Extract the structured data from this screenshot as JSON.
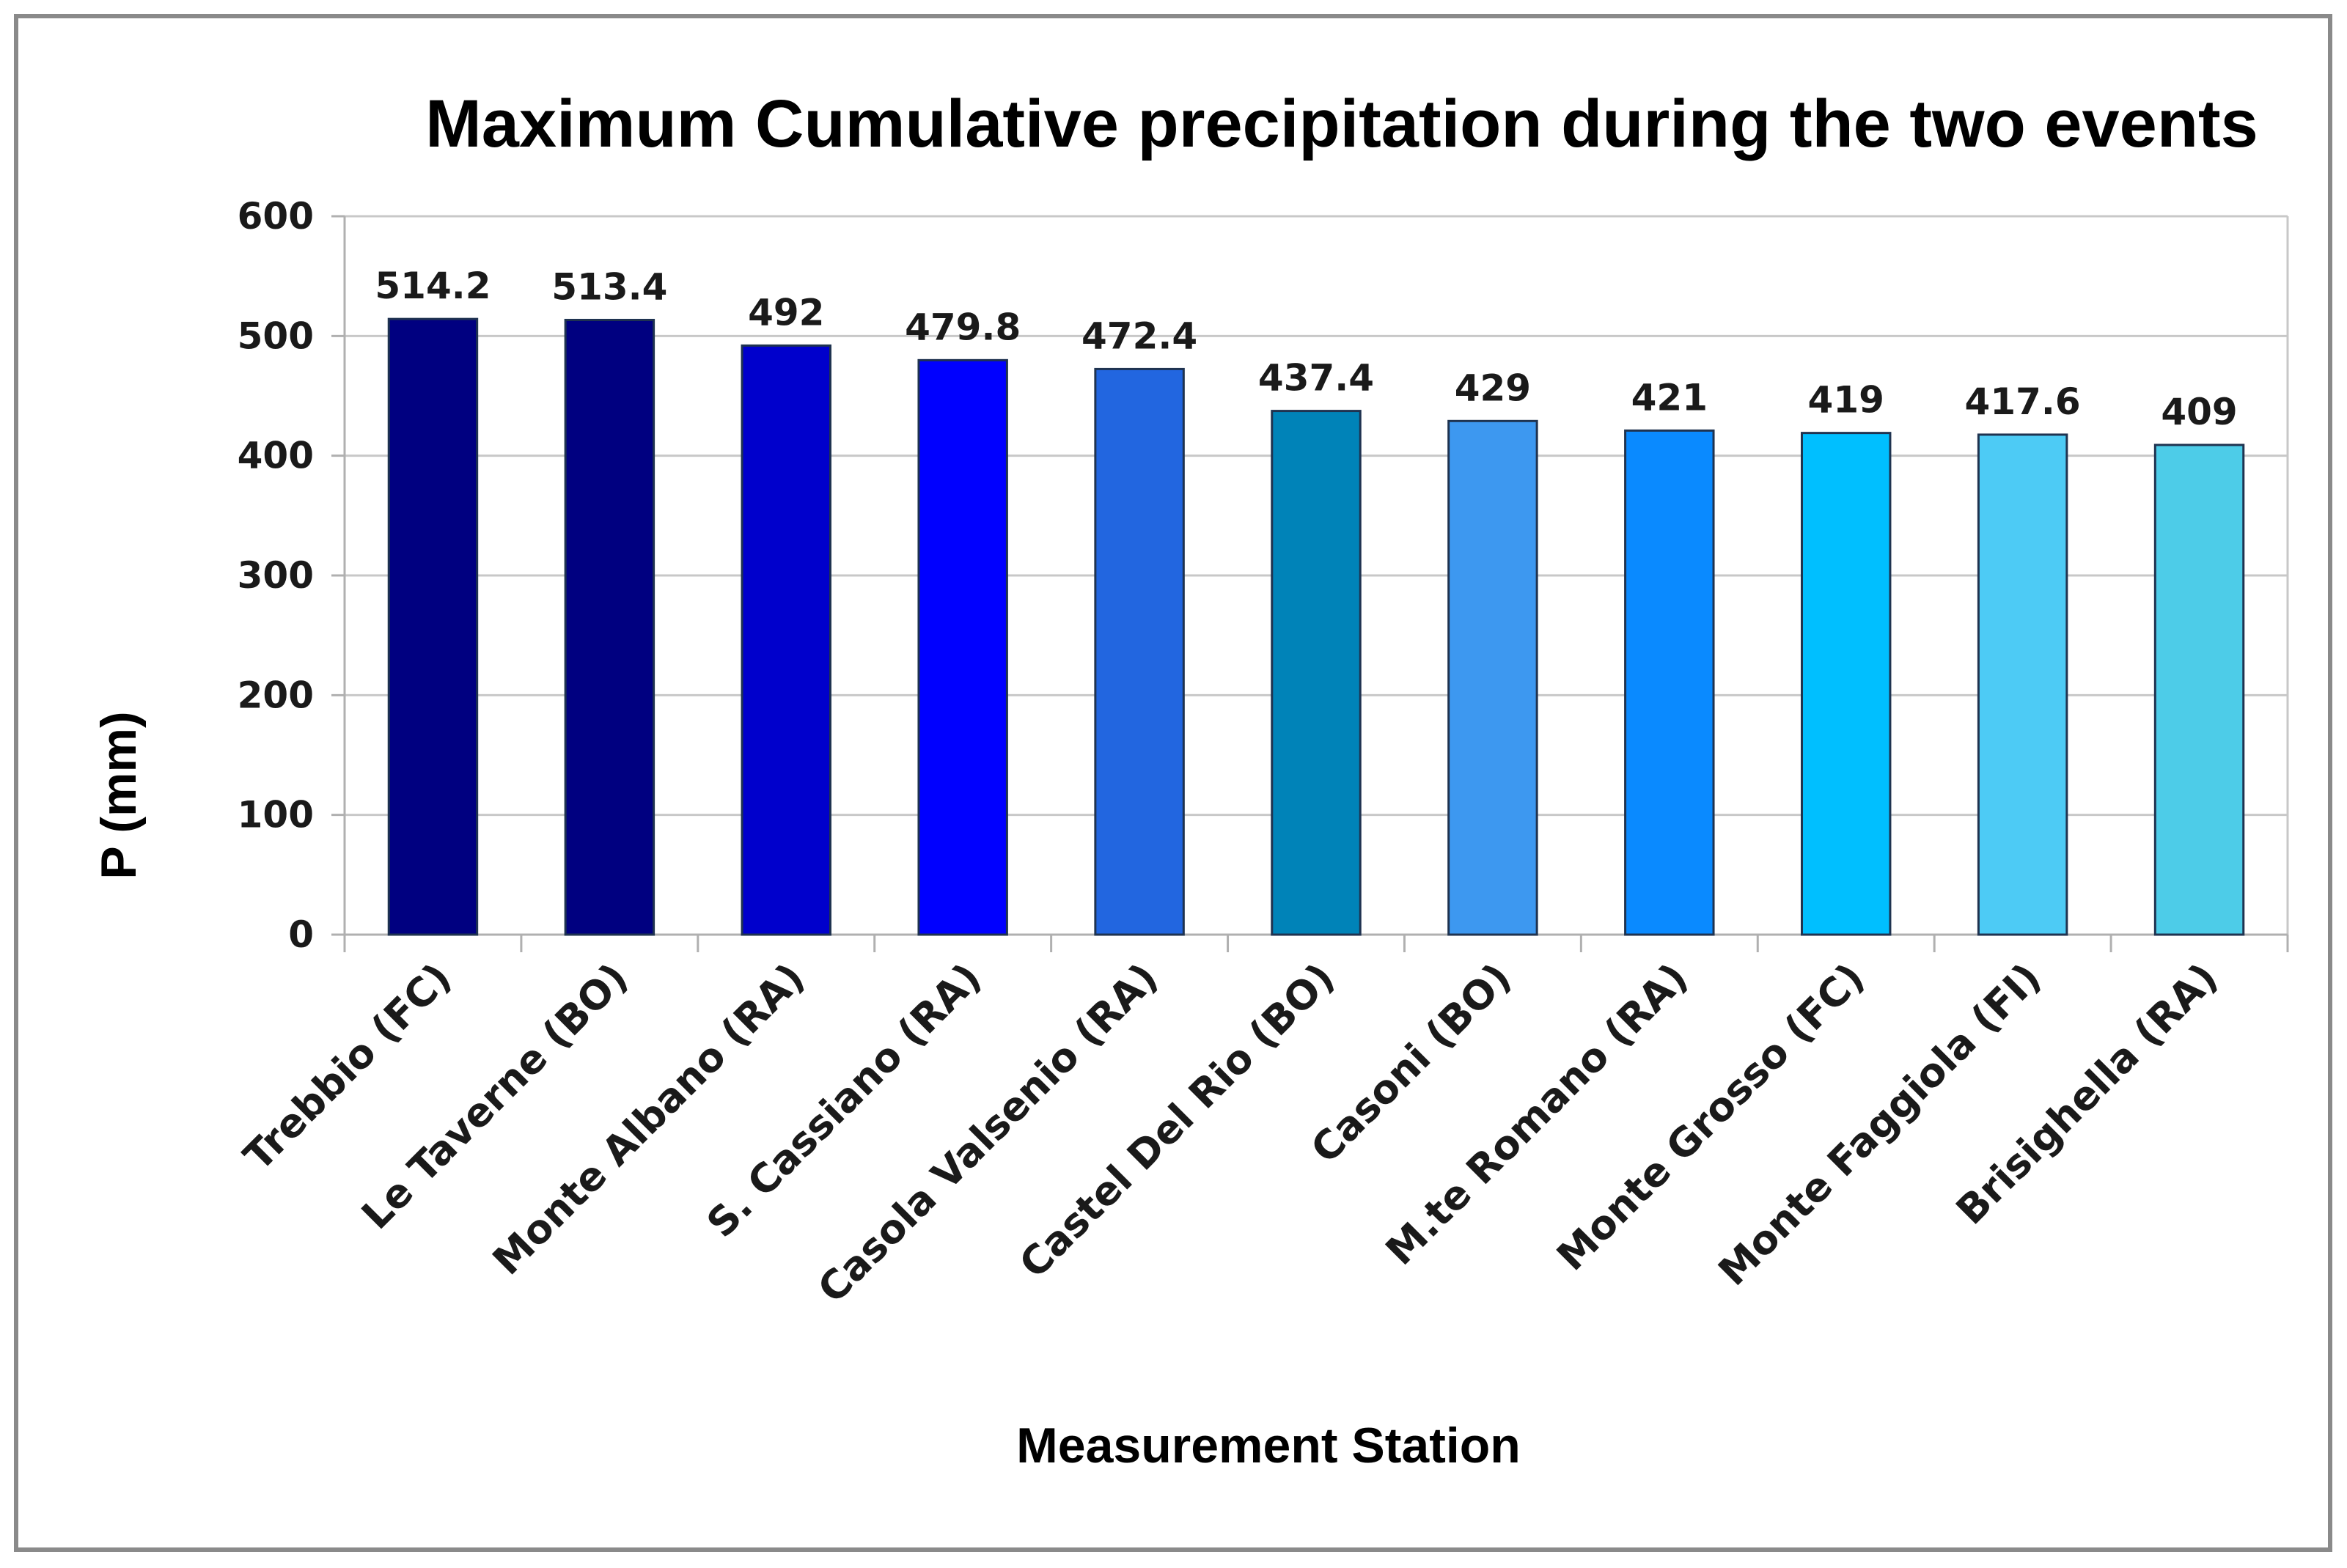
{
  "chart_data": {
    "type": "bar",
    "title": "Maximum Cumulative precipitation during the two events",
    "xlabel": "Measurement Station",
    "ylabel": "P (mm)",
    "ylim": [
      0,
      600
    ],
    "yticks": [
      "0",
      "100",
      "200",
      "300",
      "400",
      "500",
      "600"
    ],
    "grid": true,
    "categories": [
      "Trebbio (FC)",
      "Le Taverne (BO)",
      "Monte Albano (RA)",
      "S. Cassiano (RA)",
      "Casola Valsenio (RA)",
      "Castel Del Rio (BO)",
      "Casoni (BO)",
      "M.te Romano (RA)",
      "Monte Grosso (FC)",
      "Monte Faggiola (FI)",
      "Brisighella (RA)"
    ],
    "values": [
      514.2,
      513.4,
      492,
      479.8,
      472.4,
      437.4,
      429,
      421,
      419,
      417.6,
      409
    ],
    "value_labels": [
      "514.2",
      "513.4",
      "492",
      "479.8",
      "472.4",
      "437.4",
      "429",
      "421",
      "419",
      "417.6",
      "409"
    ],
    "colors": [
      "#000080",
      "#000080",
      "#0000cc",
      "#0000ff",
      "#2266e0",
      "#0083b8",
      "#3d98f0",
      "#0a8aff",
      "#00bfff",
      "#4dcbf5",
      "#4dcce8"
    ]
  }
}
